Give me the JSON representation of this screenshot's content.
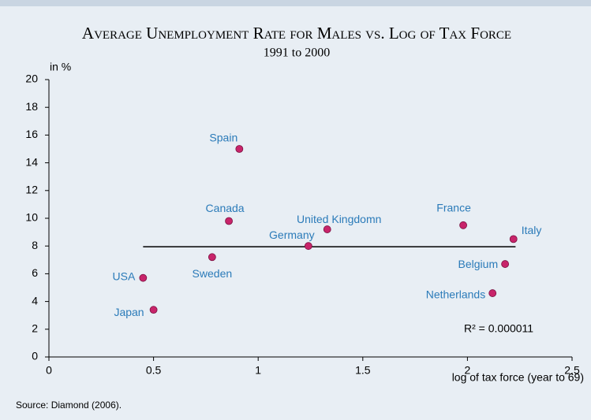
{
  "chart_data": {
    "type": "scatter",
    "title": "Average Unemployment Rate for Males  vs. Log of Tax Force",
    "subtitle": "1991 to 2000",
    "y_label": "in %",
    "x_label": "log of tax force (year to 69)",
    "source": "Source: Diamond (2006).",
    "annotation": "R² = 0.000011",
    "categories": [
      "Spain",
      "Canada",
      "United Kingdomn",
      "Germany",
      "France",
      "Italy",
      "Belgium",
      "Netherlands",
      "Sweden",
      "USA",
      "Japan"
    ],
    "x": [
      0.91,
      0.86,
      1.33,
      1.24,
      1.98,
      2.22,
      2.18,
      2.12,
      0.78,
      0.45,
      0.5
    ],
    "values": [
      15.0,
      9.8,
      9.2,
      8.0,
      9.5,
      8.5,
      6.7,
      4.6,
      7.2,
      5.7,
      3.4
    ],
    "color": "#c8246a",
    "label_color": "#2b7bb9",
    "trendline": {
      "x": [
        0.45,
        2.23
      ],
      "values": [
        7.95,
        7.95
      ],
      "color": "#000000"
    },
    "xlim": [
      0,
      2.5
    ],
    "xticks": [
      0,
      0.5,
      1,
      1.5,
      2,
      2.5
    ],
    "ylim": [
      0,
      20
    ],
    "yticks": [
      0,
      2,
      4,
      6,
      8,
      10,
      12,
      14,
      16,
      18,
      20
    ]
  }
}
